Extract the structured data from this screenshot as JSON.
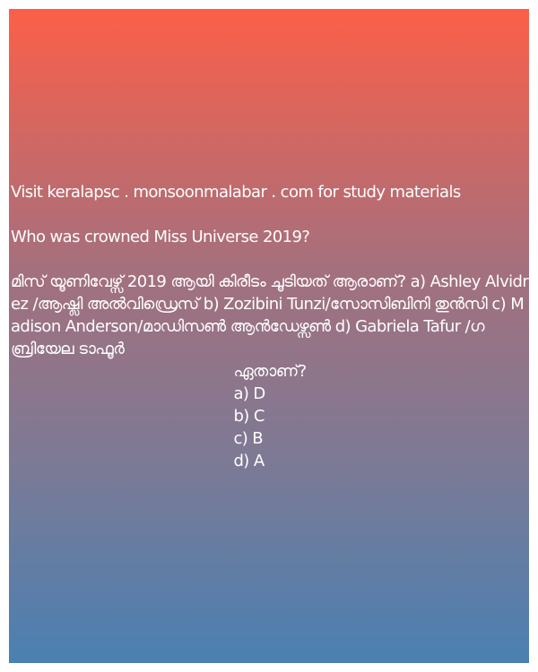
{
  "site_line": "Visit keralapsc . monsoonmalabar . com for study materials",
  "question_en": "Who was crowned Miss Universe 2019?",
  "question_ml_prefix": "മിസ് യൂണിവേഴ്സ് 2019 ആയി കിരീടം ചൂടിയത് ആരാണ്? ",
  "options": [
    "a) Ashley Alvidrez /ആഷ്ലി അൽവിഡ്രെസ് ",
    "b) Zozibini Tunzi/സോസിബിനി തുൻസി ",
    "c) Madison Anderson/മാഡിസൺ ആൻഡേഴ്സൺ ",
    "d) Gabriela Tafur /ഗബ്രിയേല ടാഫൂർ"
  ],
  "ask_suffix": "ഏതാണ്?",
  "answers": [
    "a) D",
    "b) C",
    "c) B",
    "d) A"
  ]
}
